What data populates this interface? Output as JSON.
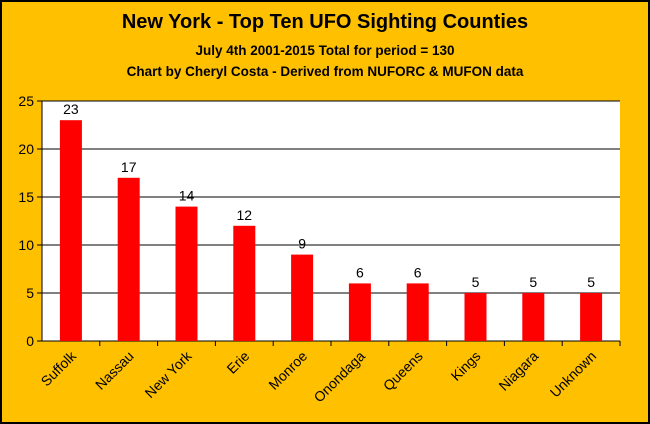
{
  "colors": {
    "background": "#FFC000",
    "plot_area": "#FFFFFF",
    "bar": "#FF0000",
    "gridline": "#000000"
  },
  "chart_data": {
    "type": "bar",
    "title": "New York - Top Ten UFO Sighting Counties",
    "subtitle_lines": [
      "July 4th  2001-2015  Total for period = 130",
      "Chart by Cheryl Costa - Derived from NUFORC & MUFON data"
    ],
    "categories": [
      "Suffolk",
      "Nassau",
      "New York",
      "Erie",
      "Monroe",
      "Onondaga",
      "Queens",
      "Kings",
      "Niagara",
      "Unknown"
    ],
    "values": [
      23,
      17,
      14,
      12,
      9,
      6,
      6,
      5,
      5,
      5
    ],
    "data_labels": [
      "23",
      "17",
      "14",
      "12",
      "9",
      "6",
      "6",
      "5",
      "5",
      "5"
    ],
    "y_ticks": [
      "0",
      "5",
      "10",
      "15",
      "20",
      "25"
    ],
    "ylim": [
      0,
      25
    ],
    "grid": true,
    "legend": "none"
  }
}
